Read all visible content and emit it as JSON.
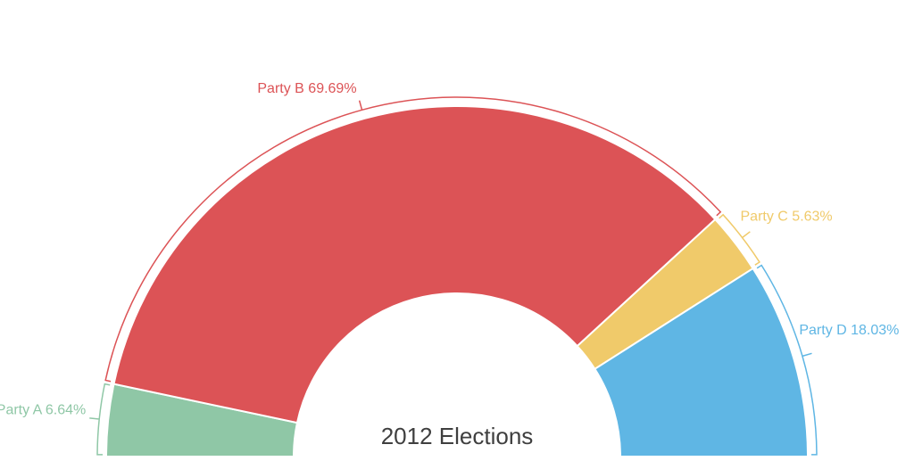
{
  "chart_data": {
    "type": "pie",
    "variant": "semi-donut",
    "title": "2012 Elections",
    "slices": [
      {
        "label": "Party A",
        "value": 6.64,
        "value_label": "6.64%",
        "color": "#8fc7a6"
      },
      {
        "label": "Party B",
        "value": 69.69,
        "value_label": "69.69%",
        "color": "#dc5356"
      },
      {
        "label": "Party C",
        "value": 5.63,
        "value_label": "5.63%",
        "color": "#f0ca6a"
      },
      {
        "label": "Party D",
        "value": 18.03,
        "value_label": "18.03%",
        "color": "#5fb6e4"
      }
    ],
    "legend": "none"
  }
}
